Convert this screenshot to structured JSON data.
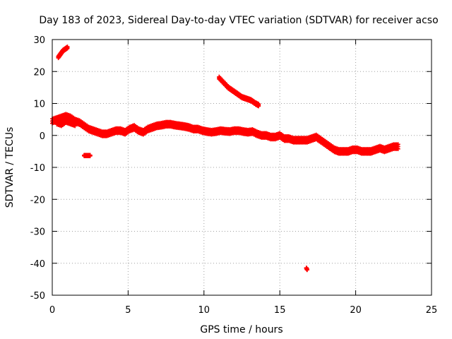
{
  "chart_data": {
    "type": "scatter",
    "title": "Day 183 of 2023, Sidereal Day-to-day VTEC variation (SDTVAR) for receiver acso",
    "xlabel": "GPS time / hours",
    "ylabel": "SDTVAR / TECUs",
    "xlim": [
      0,
      25
    ],
    "ylim": [
      -50,
      30
    ],
    "xticks": [
      0,
      5,
      10,
      15,
      20,
      25
    ],
    "yticks": [
      -50,
      -40,
      -30,
      -20,
      -10,
      0,
      10,
      20,
      30
    ],
    "grid": true,
    "series_color": "#ff0000",
    "series": [
      {
        "name": "main trace",
        "x": [
          0.0,
          0.3,
          0.6,
          0.9,
          1.2,
          1.5,
          1.8,
          2.1,
          2.4,
          2.7,
          3.0,
          3.3,
          3.6,
          3.9,
          4.2,
          4.5,
          4.8,
          5.1,
          5.4,
          5.7,
          6.0,
          6.3,
          6.6,
          6.9,
          7.2,
          7.5,
          7.8,
          8.1,
          8.4,
          8.7,
          9.0,
          9.3,
          9.6,
          9.9,
          10.2,
          10.5,
          10.8,
          11.1,
          11.4,
          11.7,
          12.0,
          12.3,
          12.6,
          12.9,
          13.2,
          13.5,
          13.8,
          14.1,
          14.4,
          14.7,
          15.0,
          15.3,
          15.6,
          15.9,
          16.2,
          16.5,
          16.8,
          17.1,
          17.4,
          17.7,
          18.0,
          18.3,
          18.6,
          18.9,
          19.2,
          19.5,
          19.8,
          20.1,
          20.4,
          20.7,
          21.0,
          21.3,
          21.6,
          21.9,
          22.2,
          22.5,
          22.8
        ],
        "y": [
          4.5,
          5.0,
          5.5,
          6.0,
          5.5,
          4.5,
          4.0,
          3.0,
          2.0,
          1.5,
          1.0,
          0.5,
          0.5,
          1.0,
          1.5,
          1.5,
          1.0,
          2.0,
          2.5,
          1.5,
          1.0,
          2.0,
          2.5,
          3.0,
          3.2,
          3.5,
          3.5,
          3.2,
          3.0,
          2.8,
          2.5,
          2.0,
          2.0,
          1.5,
          1.2,
          1.0,
          1.2,
          1.5,
          1.3,
          1.2,
          1.5,
          1.5,
          1.2,
          1.0,
          1.2,
          0.5,
          0.0,
          0.0,
          -0.5,
          -0.5,
          0.0,
          -1.0,
          -1.0,
          -1.5,
          -1.5,
          -1.5,
          -1.5,
          -1.0,
          -0.5,
          -1.5,
          -2.5,
          -3.5,
          -4.5,
          -5.0,
          -5.0,
          -5.0,
          -4.5,
          -4.5,
          -5.0,
          -5.0,
          -5.0,
          -4.5,
          -4.0,
          -4.5,
          -4.0,
          -3.5,
          -3.5
        ],
        "y_spread": 1.6
      },
      {
        "name": "lower cluster",
        "x": [
          0.3,
          0.6,
          0.9,
          1.2,
          1.5
        ],
        "y": [
          4.0,
          3.5,
          4.5,
          4.0,
          3.5
        ],
        "y_spread": 1.2
      },
      {
        "name": "upper arc",
        "x": [
          11.0,
          11.3,
          11.6,
          11.9,
          12.2,
          12.5,
          12.8,
          13.1,
          13.4,
          13.6
        ],
        "y": [
          18.0,
          16.5,
          15.0,
          14.0,
          13.0,
          12.0,
          11.5,
          11.0,
          10.0,
          9.5
        ],
        "y_spread": 0.8
      },
      {
        "name": "early high segment",
        "x": [
          0.4,
          0.55,
          0.7,
          0.85,
          1.0
        ],
        "y": [
          24.5,
          25.5,
          26.5,
          27.0,
          27.5
        ],
        "y_spread": 0.6
      },
      {
        "name": "isolated near -6",
        "x": [
          2.1,
          2.2,
          2.3,
          2.4,
          2.5
        ],
        "y": [
          -6.3,
          -6.3,
          -6.3,
          -6.3,
          -6.3
        ],
        "y_spread": 0.3
      },
      {
        "name": "outlier near -42",
        "x": [
          16.75,
          16.8
        ],
        "y": [
          -41.5,
          -42.0
        ],
        "y_spread": 0.2
      }
    ]
  }
}
